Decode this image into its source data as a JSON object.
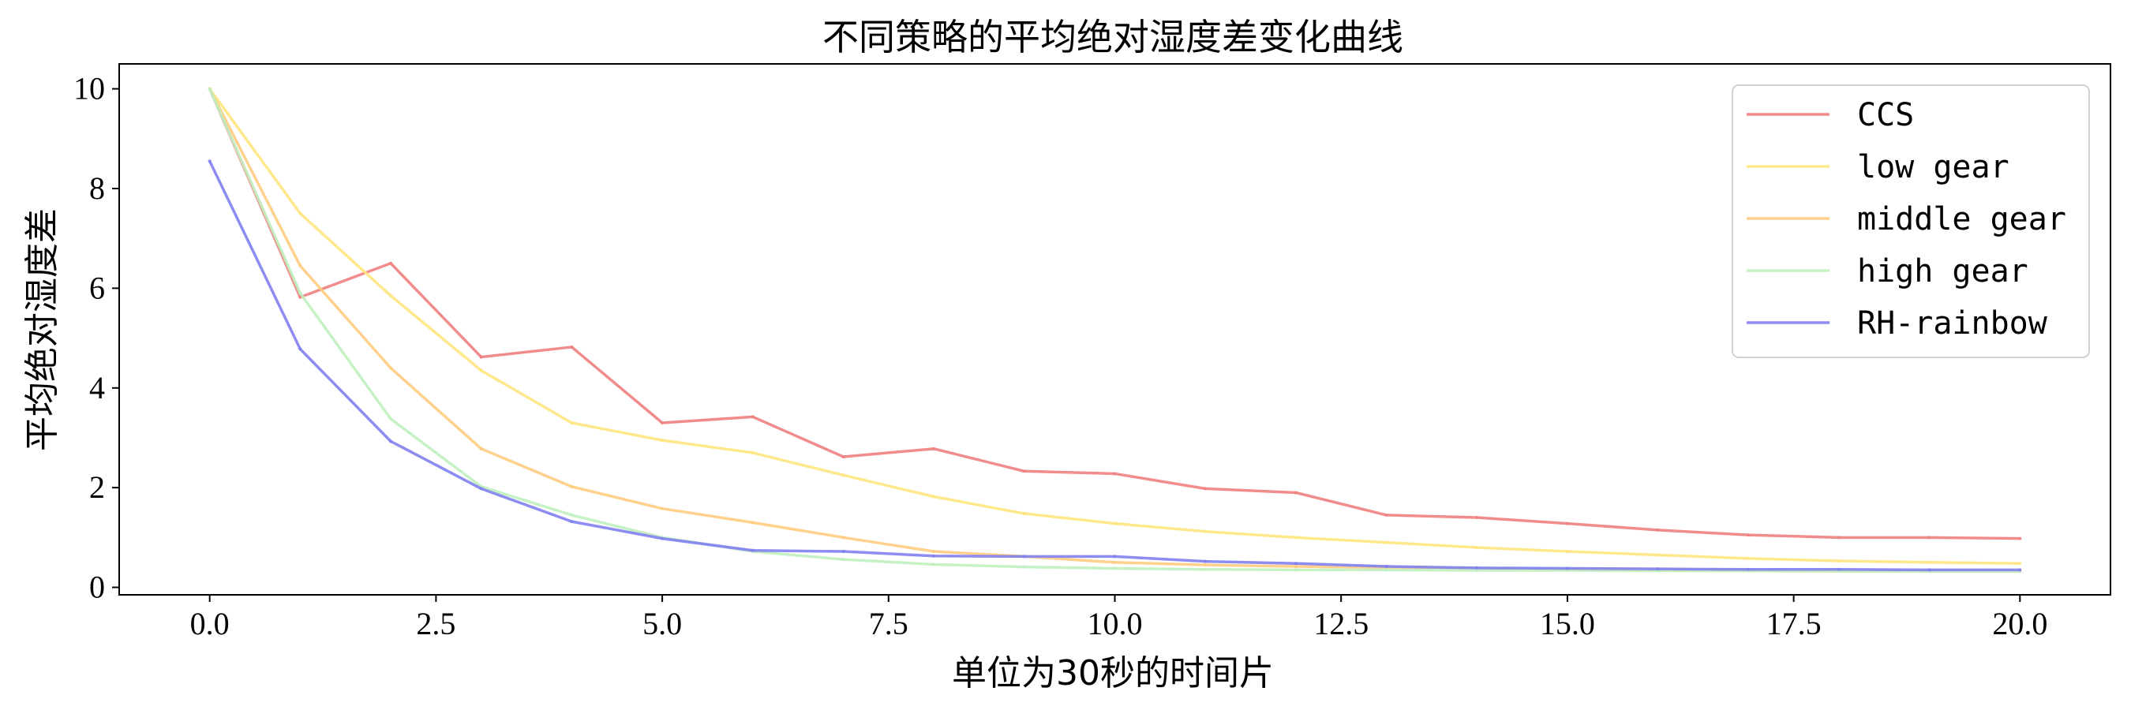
{
  "chart_data": {
    "type": "line",
    "title": "不同策略的平均绝对湿度差变化曲线",
    "xlabel": "单位为30秒的时间片",
    "ylabel": "平均绝对湿度差",
    "xlim": [
      -1,
      21.0
    ],
    "ylim": [
      -0.15,
      10.5
    ],
    "xticks": [
      0.0,
      2.5,
      5.0,
      7.5,
      10.0,
      12.5,
      15.0,
      17.5,
      20.0
    ],
    "xtick_labels": [
      "0.0",
      "2.5",
      "5.0",
      "7.5",
      "10.0",
      "12.5",
      "15.0",
      "17.5",
      "20.0"
    ],
    "yticks": [
      0,
      2,
      4,
      6,
      8,
      10
    ],
    "ytick_labels": [
      "0",
      "2",
      "4",
      "6",
      "8",
      "10"
    ],
    "grid": false,
    "legend_position": "top-right",
    "x": [
      0,
      1,
      2,
      3,
      4,
      5,
      6,
      7,
      8,
      9,
      10,
      11,
      12,
      13,
      14,
      15,
      16,
      17,
      18,
      19,
      20
    ],
    "series": [
      {
        "name": "CCS",
        "color": "#f08080",
        "values": [
          10.0,
          5.82,
          6.5,
          4.62,
          4.82,
          3.3,
          3.42,
          2.62,
          2.78,
          2.33,
          2.28,
          1.98,
          1.9,
          1.45,
          1.4,
          1.28,
          1.15,
          1.05,
          1.0,
          1.0,
          0.98
        ]
      },
      {
        "name": "low gear",
        "color": "#ffe680",
        "values": [
          10.0,
          7.5,
          5.85,
          4.35,
          3.3,
          2.95,
          2.7,
          2.25,
          1.82,
          1.48,
          1.28,
          1.12,
          1.0,
          0.9,
          0.8,
          0.72,
          0.65,
          0.58,
          0.53,
          0.5,
          0.48
        ]
      },
      {
        "name": "middle gear",
        "color": "#ffcc80",
        "values": [
          10.0,
          6.45,
          4.4,
          2.78,
          2.02,
          1.58,
          1.3,
          1.0,
          0.72,
          0.62,
          0.5,
          0.45,
          0.42,
          0.4,
          0.38,
          0.36,
          0.35,
          0.34,
          0.33,
          0.33,
          0.32
        ]
      },
      {
        "name": "high gear",
        "color": "#bff0bf",
        "values": [
          10.0,
          5.9,
          3.38,
          2.02,
          1.45,
          1.0,
          0.72,
          0.56,
          0.46,
          0.41,
          0.38,
          0.36,
          0.35,
          0.35,
          0.34,
          0.34,
          0.33,
          0.33,
          0.32,
          0.32,
          0.32
        ]
      },
      {
        "name": "RH-rainbow",
        "color": "#8080f0",
        "values": [
          8.55,
          4.78,
          2.93,
          1.98,
          1.32,
          0.98,
          0.74,
          0.72,
          0.63,
          0.62,
          0.62,
          0.52,
          0.48,
          0.42,
          0.39,
          0.38,
          0.37,
          0.36,
          0.36,
          0.35,
          0.35
        ]
      }
    ]
  }
}
